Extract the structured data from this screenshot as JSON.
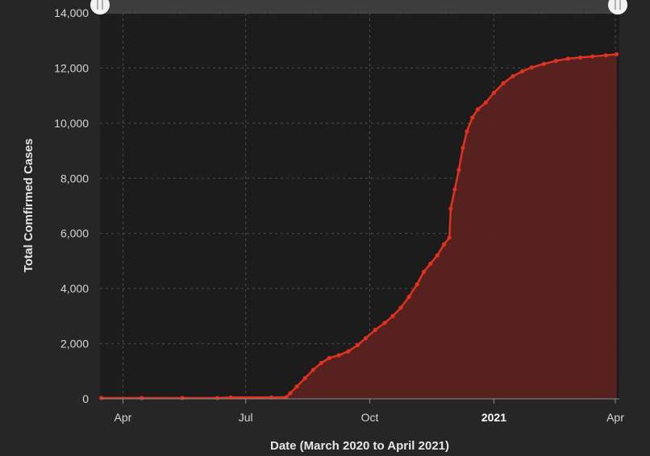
{
  "chart_data": {
    "type": "area",
    "xlabel": "Date (March 2020 to April 2021)",
    "ylabel": "Total Comfirmed Cases",
    "ylim": [
      0,
      14000
    ],
    "yticks": [
      {
        "value": 0,
        "label": "0"
      },
      {
        "value": 2000,
        "label": "2,000"
      },
      {
        "value": 4000,
        "label": "4,000"
      },
      {
        "value": 6000,
        "label": "6,000"
      },
      {
        "value": 8000,
        "label": "8,000"
      },
      {
        "value": 10000,
        "label": "10,000"
      },
      {
        "value": 12000,
        "label": "12,000"
      },
      {
        "value": 14000,
        "label": "14,000"
      }
    ],
    "xlim": [
      "2020-03-15",
      "2021-04-04"
    ],
    "xticks": [
      {
        "date": "2020-04-01",
        "label": "Apr",
        "bold": false
      },
      {
        "date": "2020-07-01",
        "label": "Jul",
        "bold": false
      },
      {
        "date": "2020-10-01",
        "label": "Oct",
        "bold": false
      },
      {
        "date": "2021-01-01",
        "label": "2021",
        "bold": true
      },
      {
        "date": "2021-04-01",
        "label": "Apr",
        "bold": false
      }
    ],
    "grid": true,
    "legend": "none",
    "colors": {
      "line": "#e0321e",
      "fill": "#5a2220",
      "background": "#262626",
      "plot_background": "#1c1c1c",
      "navigator": "#3d3d3d"
    },
    "series": [
      {
        "points": [
          [
            "2020-03-16",
            30
          ],
          [
            "2020-04-15",
            30
          ],
          [
            "2020-05-15",
            30
          ],
          [
            "2020-06-10",
            30
          ],
          [
            "2020-06-20",
            50
          ],
          [
            "2020-07-20",
            50
          ],
          [
            "2020-07-31",
            60
          ],
          [
            "2020-08-03",
            200
          ],
          [
            "2020-08-08",
            450
          ],
          [
            "2020-08-14",
            750
          ],
          [
            "2020-08-20",
            1050
          ],
          [
            "2020-08-26",
            1300
          ],
          [
            "2020-09-01",
            1480
          ],
          [
            "2020-09-08",
            1580
          ],
          [
            "2020-09-15",
            1720
          ],
          [
            "2020-09-22",
            1950
          ],
          [
            "2020-09-28",
            2200
          ],
          [
            "2020-10-05",
            2500
          ],
          [
            "2020-10-12",
            2750
          ],
          [
            "2020-10-18",
            3000
          ],
          [
            "2020-10-24",
            3300
          ],
          [
            "2020-10-30",
            3700
          ],
          [
            "2020-11-05",
            4150
          ],
          [
            "2020-11-10",
            4600
          ],
          [
            "2020-11-15",
            4900
          ],
          [
            "2020-11-20",
            5200
          ],
          [
            "2020-11-25",
            5600
          ],
          [
            "2020-11-29",
            5850
          ],
          [
            "2020-11-30",
            6900
          ],
          [
            "2020-12-03",
            7600
          ],
          [
            "2020-12-06",
            8300
          ],
          [
            "2020-12-09",
            9100
          ],
          [
            "2020-12-12",
            9700
          ],
          [
            "2020-12-16",
            10200
          ],
          [
            "2020-12-20",
            10500
          ],
          [
            "2020-12-26",
            10750
          ],
          [
            "2021-01-01",
            11100
          ],
          [
            "2021-01-08",
            11450
          ],
          [
            "2021-01-15",
            11700
          ],
          [
            "2021-01-22",
            11880
          ],
          [
            "2021-01-29",
            12020
          ],
          [
            "2021-02-07",
            12150
          ],
          [
            "2021-02-16",
            12260
          ],
          [
            "2021-02-25",
            12340
          ],
          [
            "2021-03-06",
            12380
          ],
          [
            "2021-03-15",
            12420
          ],
          [
            "2021-03-25",
            12460
          ],
          [
            "2021-04-02",
            12500
          ]
        ]
      }
    ]
  }
}
